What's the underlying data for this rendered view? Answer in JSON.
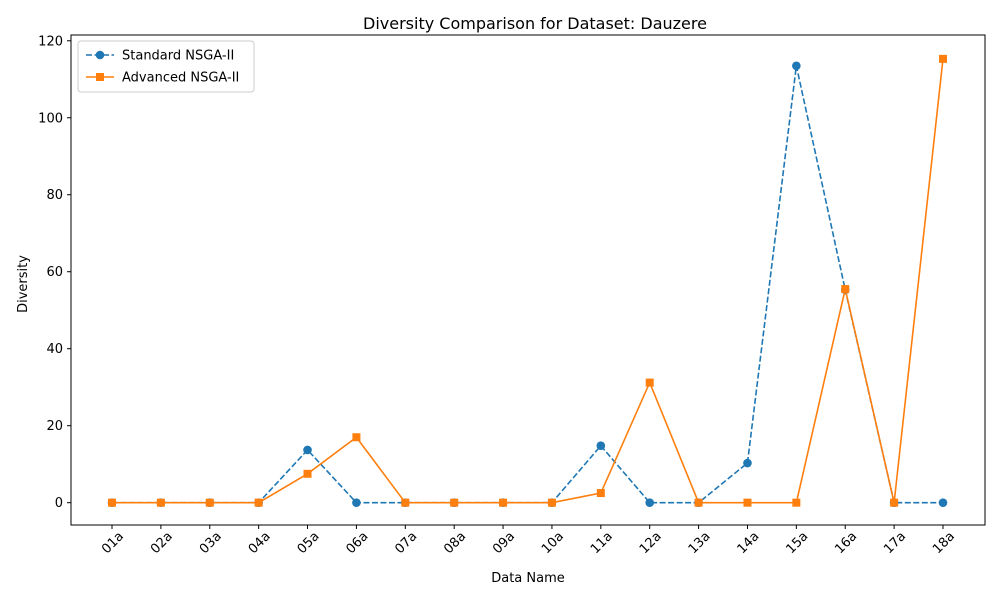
{
  "chart_data": {
    "type": "line",
    "title": "Diversity Comparison for Dataset: Dauzere",
    "xlabel": "Data Name",
    "ylabel": "Diversity",
    "categories": [
      "01a",
      "02a",
      "03a",
      "04a",
      "05a",
      "06a",
      "07a",
      "08a",
      "09a",
      "10a",
      "11a",
      "12a",
      "13a",
      "14a",
      "15a",
      "16a",
      "17a",
      "18a"
    ],
    "ylim": [
      -5.8,
      121.5
    ],
    "yticks": [
      0,
      20,
      40,
      60,
      80,
      100,
      120
    ],
    "ytick_labels": [
      "0",
      "20",
      "40",
      "60",
      "80",
      "100",
      "120"
    ],
    "grid": false,
    "legend_position": "top-left",
    "series": [
      {
        "name": "Standard NSGA-II",
        "color": "#1f77b4",
        "line_style": "dashed",
        "marker": "circle",
        "values": [
          0,
          0,
          0,
          0,
          13.7,
          0,
          0,
          0,
          0,
          0,
          14.8,
          0,
          0,
          10.3,
          113.5,
          55.3,
          0,
          0
        ]
      },
      {
        "name": "Advanced NSGA-II",
        "color": "#ff7f0e",
        "line_style": "solid",
        "marker": "square",
        "values": [
          0,
          0,
          0,
          0,
          7.5,
          17.0,
          0,
          0,
          0,
          0,
          2.5,
          31.2,
          0,
          0,
          0,
          55.5,
          0,
          115.3
        ]
      }
    ]
  }
}
